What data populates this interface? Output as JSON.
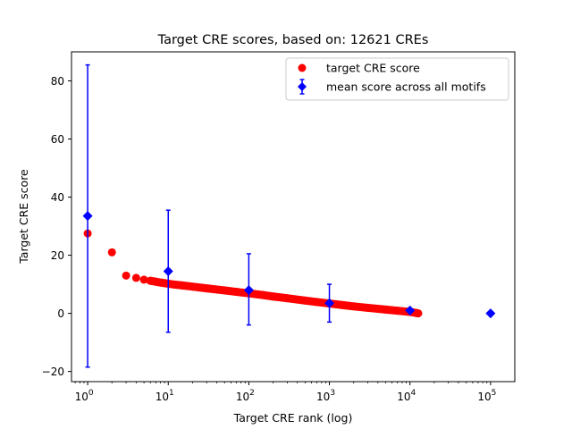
{
  "chart_data": {
    "type": "scatter",
    "title": "Target CRE scores, based on: 12621 CREs",
    "xlabel": "Target CRE rank (log)",
    "ylabel": "Target CRE score",
    "xscale": "log",
    "xlim": [
      0.63,
      200000
    ],
    "ylim": [
      -23.5,
      90
    ],
    "x_ticks": [
      {
        "base": "10",
        "exp": "0",
        "value": 1
      },
      {
        "base": "10",
        "exp": "1",
        "value": 10
      },
      {
        "base": "10",
        "exp": "2",
        "value": 100
      },
      {
        "base": "10",
        "exp": "3",
        "value": 1000
      },
      {
        "base": "10",
        "exp": "4",
        "value": 10000
      },
      {
        "base": "10",
        "exp": "5",
        "value": 100000
      }
    ],
    "y_ticks": [
      -20,
      0,
      20,
      40,
      60,
      80
    ],
    "grid": false,
    "legend_position": "top-right",
    "series": [
      {
        "name": "target CRE score",
        "kind": "points",
        "color": "#ff0000",
        "marker": "circle",
        "x": [
          1,
          2,
          3,
          4,
          5,
          6,
          7,
          8,
          9,
          10,
          12,
          15,
          20,
          30,
          50,
          70,
          100,
          150,
          200,
          300,
          500,
          700,
          1000,
          1500,
          2000,
          3000,
          5000,
          7000,
          10000,
          12621
        ],
        "y": [
          27.5,
          21.0,
          13.0,
          12.2,
          11.6,
          11.2,
          10.9,
          10.6,
          10.4,
          10.2,
          9.9,
          9.6,
          9.2,
          8.6,
          7.9,
          7.4,
          6.9,
          6.3,
          5.8,
          5.2,
          4.4,
          3.9,
          3.4,
          2.8,
          2.4,
          1.9,
          1.3,
          0.9,
          0.5,
          0.0
        ]
      },
      {
        "name": "mean score across all motifs",
        "kind": "errorbar",
        "color": "#0000ff",
        "marker": "diamond",
        "x": [
          1,
          10,
          100,
          1000,
          10000,
          100000
        ],
        "y": [
          33.5,
          14.5,
          8.0,
          3.5,
          1.0,
          0.0
        ],
        "yerr_low": [
          -18.5,
          -6.5,
          -4.0,
          -3.0,
          0.5,
          0.0
        ],
        "yerr_high": [
          85.5,
          35.5,
          20.5,
          10.0,
          1.5,
          0.0
        ]
      }
    ]
  }
}
